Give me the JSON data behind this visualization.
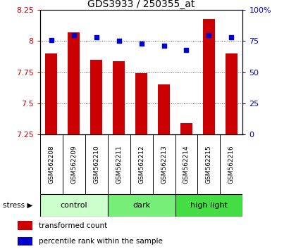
{
  "title": "GDS3933 / 250355_at",
  "samples": [
    "GSM562208",
    "GSM562209",
    "GSM562210",
    "GSM562211",
    "GSM562212",
    "GSM562213",
    "GSM562214",
    "GSM562215",
    "GSM562216"
  ],
  "bar_values": [
    7.9,
    8.07,
    7.85,
    7.84,
    7.74,
    7.65,
    7.34,
    8.18,
    7.9
  ],
  "percentile_values": [
    76,
    80,
    78,
    75,
    73,
    71,
    68,
    80,
    78
  ],
  "ylim_left": [
    7.25,
    8.25
  ],
  "ylim_right": [
    0,
    100
  ],
  "yticks_left": [
    7.25,
    7.5,
    7.75,
    8.0,
    8.25
  ],
  "yticks_right": [
    0,
    25,
    50,
    75,
    100
  ],
  "ytick_labels_left": [
    "7.25",
    "7.5",
    "7.75",
    "8",
    "8.25"
  ],
  "ytick_labels_right": [
    "0",
    "25",
    "50",
    "75",
    "100%"
  ],
  "bar_color": "#cc0000",
  "dot_color": "#0000cc",
  "groups": [
    {
      "label": "control",
      "start": 0,
      "end": 3,
      "color": "#ccffcc"
    },
    {
      "label": "dark",
      "start": 3,
      "end": 6,
      "color": "#77ee77"
    },
    {
      "label": "high light",
      "start": 6,
      "end": 9,
      "color": "#44dd44"
    }
  ],
  "stress_label": "stress",
  "legend_bar_label": "transformed count",
  "legend_dot_label": "percentile rank within the sample",
  "background_color": "#ffffff",
  "plot_bg_color": "#ffffff",
  "grid_color": "#555555",
  "tick_color_left": "#cc0000",
  "tick_color_right": "#0000cc",
  "bar_bottom": 7.25,
  "bar_width": 0.55,
  "sample_bg_color": "#cccccc"
}
